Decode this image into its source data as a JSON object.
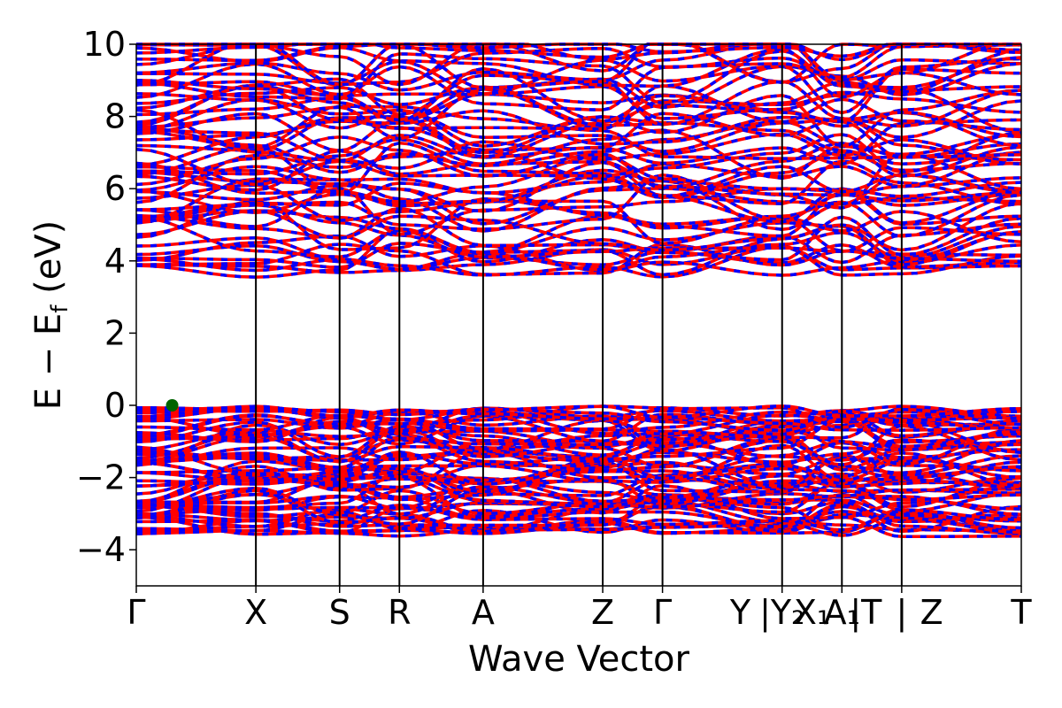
{
  "chart_data": {
    "type": "line",
    "xlabel": "Wave Vector",
    "ylabel_parts": [
      "E − E",
      "f",
      " (eV)"
    ],
    "ylim": [
      -5,
      10
    ],
    "yticks": [
      -4,
      -2,
      0,
      2,
      4,
      6,
      8,
      10
    ],
    "ytick_labels": [
      "−4",
      "−2",
      "0",
      "2",
      "4",
      "6",
      "8",
      "10"
    ],
    "kpoint_positions": [
      0,
      1.0,
      1.7,
      2.2,
      2.9,
      3.9,
      4.4,
      5.4,
      5.9,
      6.4,
      7.4
    ],
    "kpoint_labels": [
      "Γ",
      "X",
      "S",
      "R",
      "A",
      "Z",
      "Γ",
      "Y | Y₂",
      "X₁ | A₁",
      "T | Z",
      "T"
    ],
    "kpoint_label_items": [
      {
        "x": 0,
        "label": "Γ"
      },
      {
        "x": 1.0,
        "label": "X"
      },
      {
        "x": 1.7,
        "label": "S"
      },
      {
        "x": 2.2,
        "label": "R"
      },
      {
        "x": 2.9,
        "label": "A"
      },
      {
        "x": 3.9,
        "label": "Z"
      },
      {
        "x": 4.4,
        "label": "Γ"
      },
      {
        "x": 5.05,
        "label": "Y"
      },
      {
        "x": 5.4,
        "label": "|Y₂"
      },
      {
        "x": 5.65,
        "label": "X₁"
      },
      {
        "x": 5.9,
        "label": "A₁"
      },
      {
        "x": 6.1,
        "label": "|T"
      },
      {
        "x": 6.4,
        "label": "|"
      },
      {
        "x": 6.65,
        "label": "Z"
      },
      {
        "x": 7.4,
        "label": "T"
      }
    ],
    "series": [
      {
        "color": "#ff0000",
        "style": "solid",
        "band_count": 120
      },
      {
        "color": "#0000ff",
        "style": "dashed",
        "band_count": 120
      }
    ],
    "valence_band_max": {
      "x": 0.3,
      "y": 0.0,
      "color": "#006400"
    },
    "band_gap_region": [
      0.2,
      3.5
    ],
    "grid": false,
    "line_color": "#000000"
  }
}
